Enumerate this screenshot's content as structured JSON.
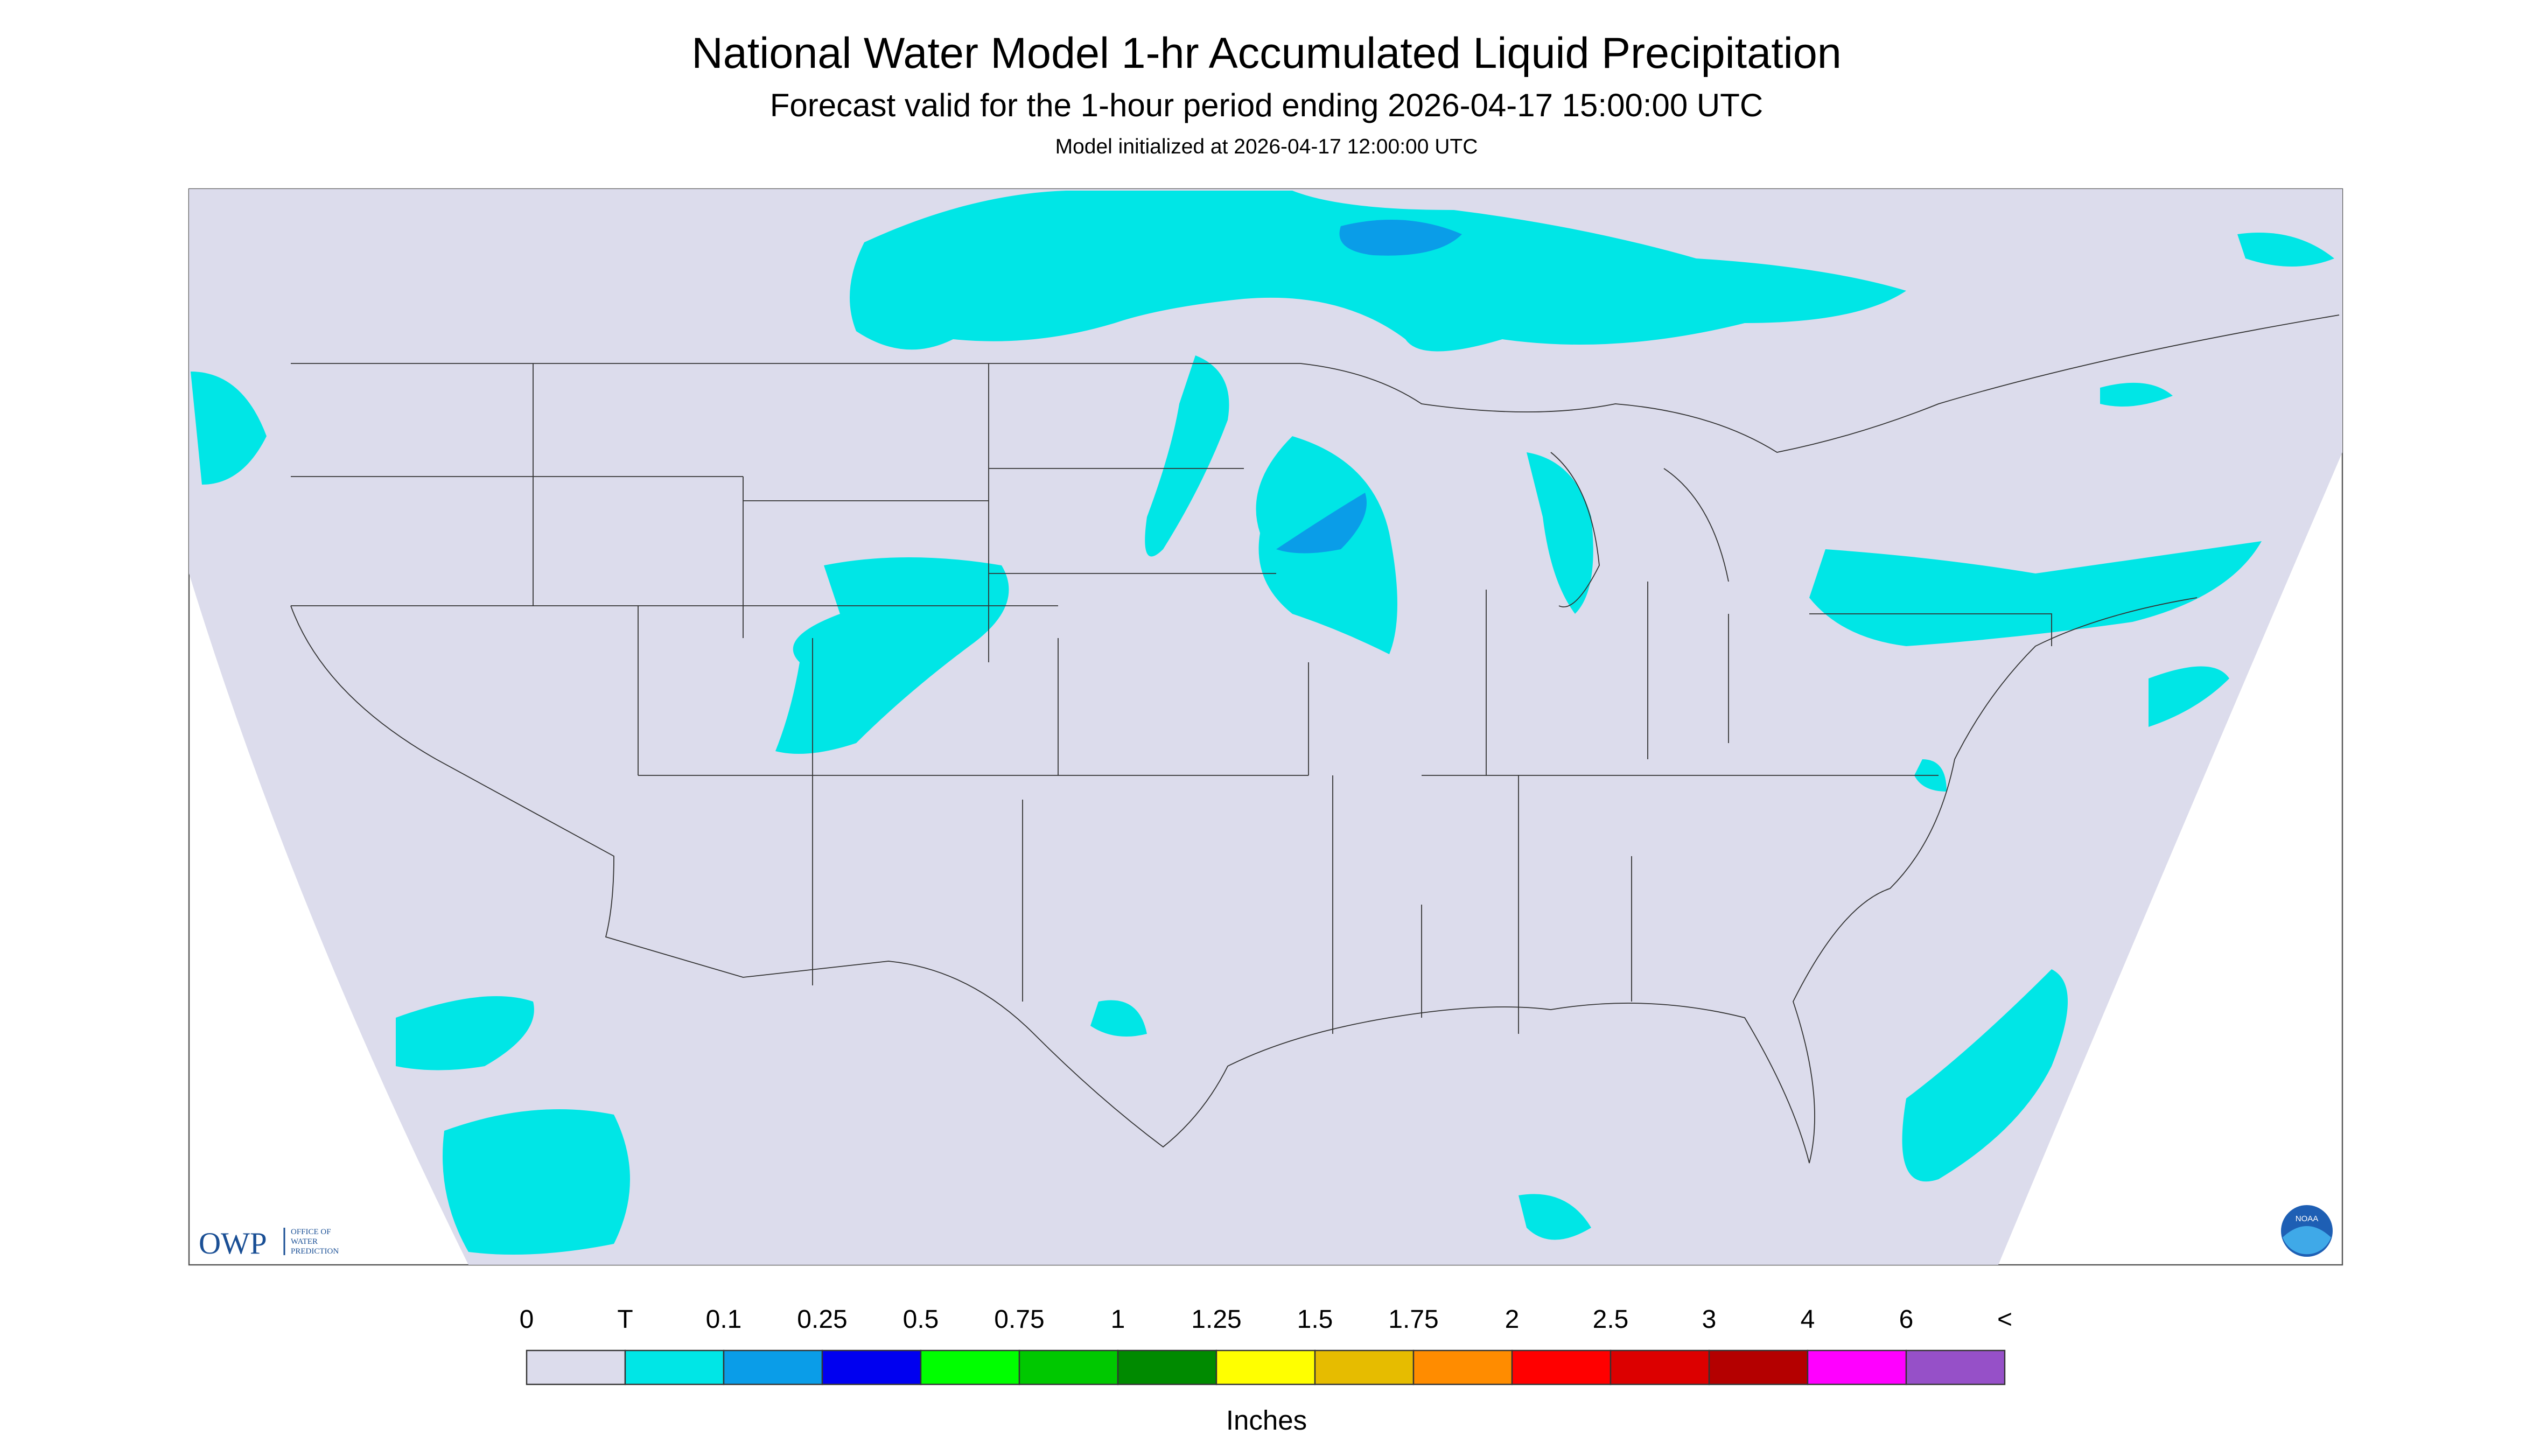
{
  "header": {
    "title": "National Water Model 1-hr Accumulated Liquid Precipitation",
    "subtitle": "Forecast valid for the 1-hour period ending 2026-04-17 15:00:00 UTC",
    "note": "Model initialized at 2026-04-17 12:00:00 UTC"
  },
  "legend": {
    "labels": [
      "0",
      "T",
      "0.1",
      "0.25",
      "0.5",
      "0.75",
      "1",
      "1.25",
      "1.5",
      "1.75",
      "2",
      "2.5",
      "3",
      "4",
      "6",
      "<"
    ],
    "colors": [
      "#dcdcec",
      "#00e6e6",
      "#0a9de8",
      "#0000f0",
      "#00ff00",
      "#00c800",
      "#008a00",
      "#ffff00",
      "#e6bc00",
      "#ff8c00",
      "#ff0000",
      "#dc0000",
      "#b40000",
      "#ff00ff",
      "#9650c8"
    ],
    "unit": "Inches"
  },
  "logos": {
    "owp": "OWP",
    "owp_text": [
      "OFFICE OF",
      "WATER",
      "PREDICTION"
    ],
    "noaa": "NOAA"
  }
}
